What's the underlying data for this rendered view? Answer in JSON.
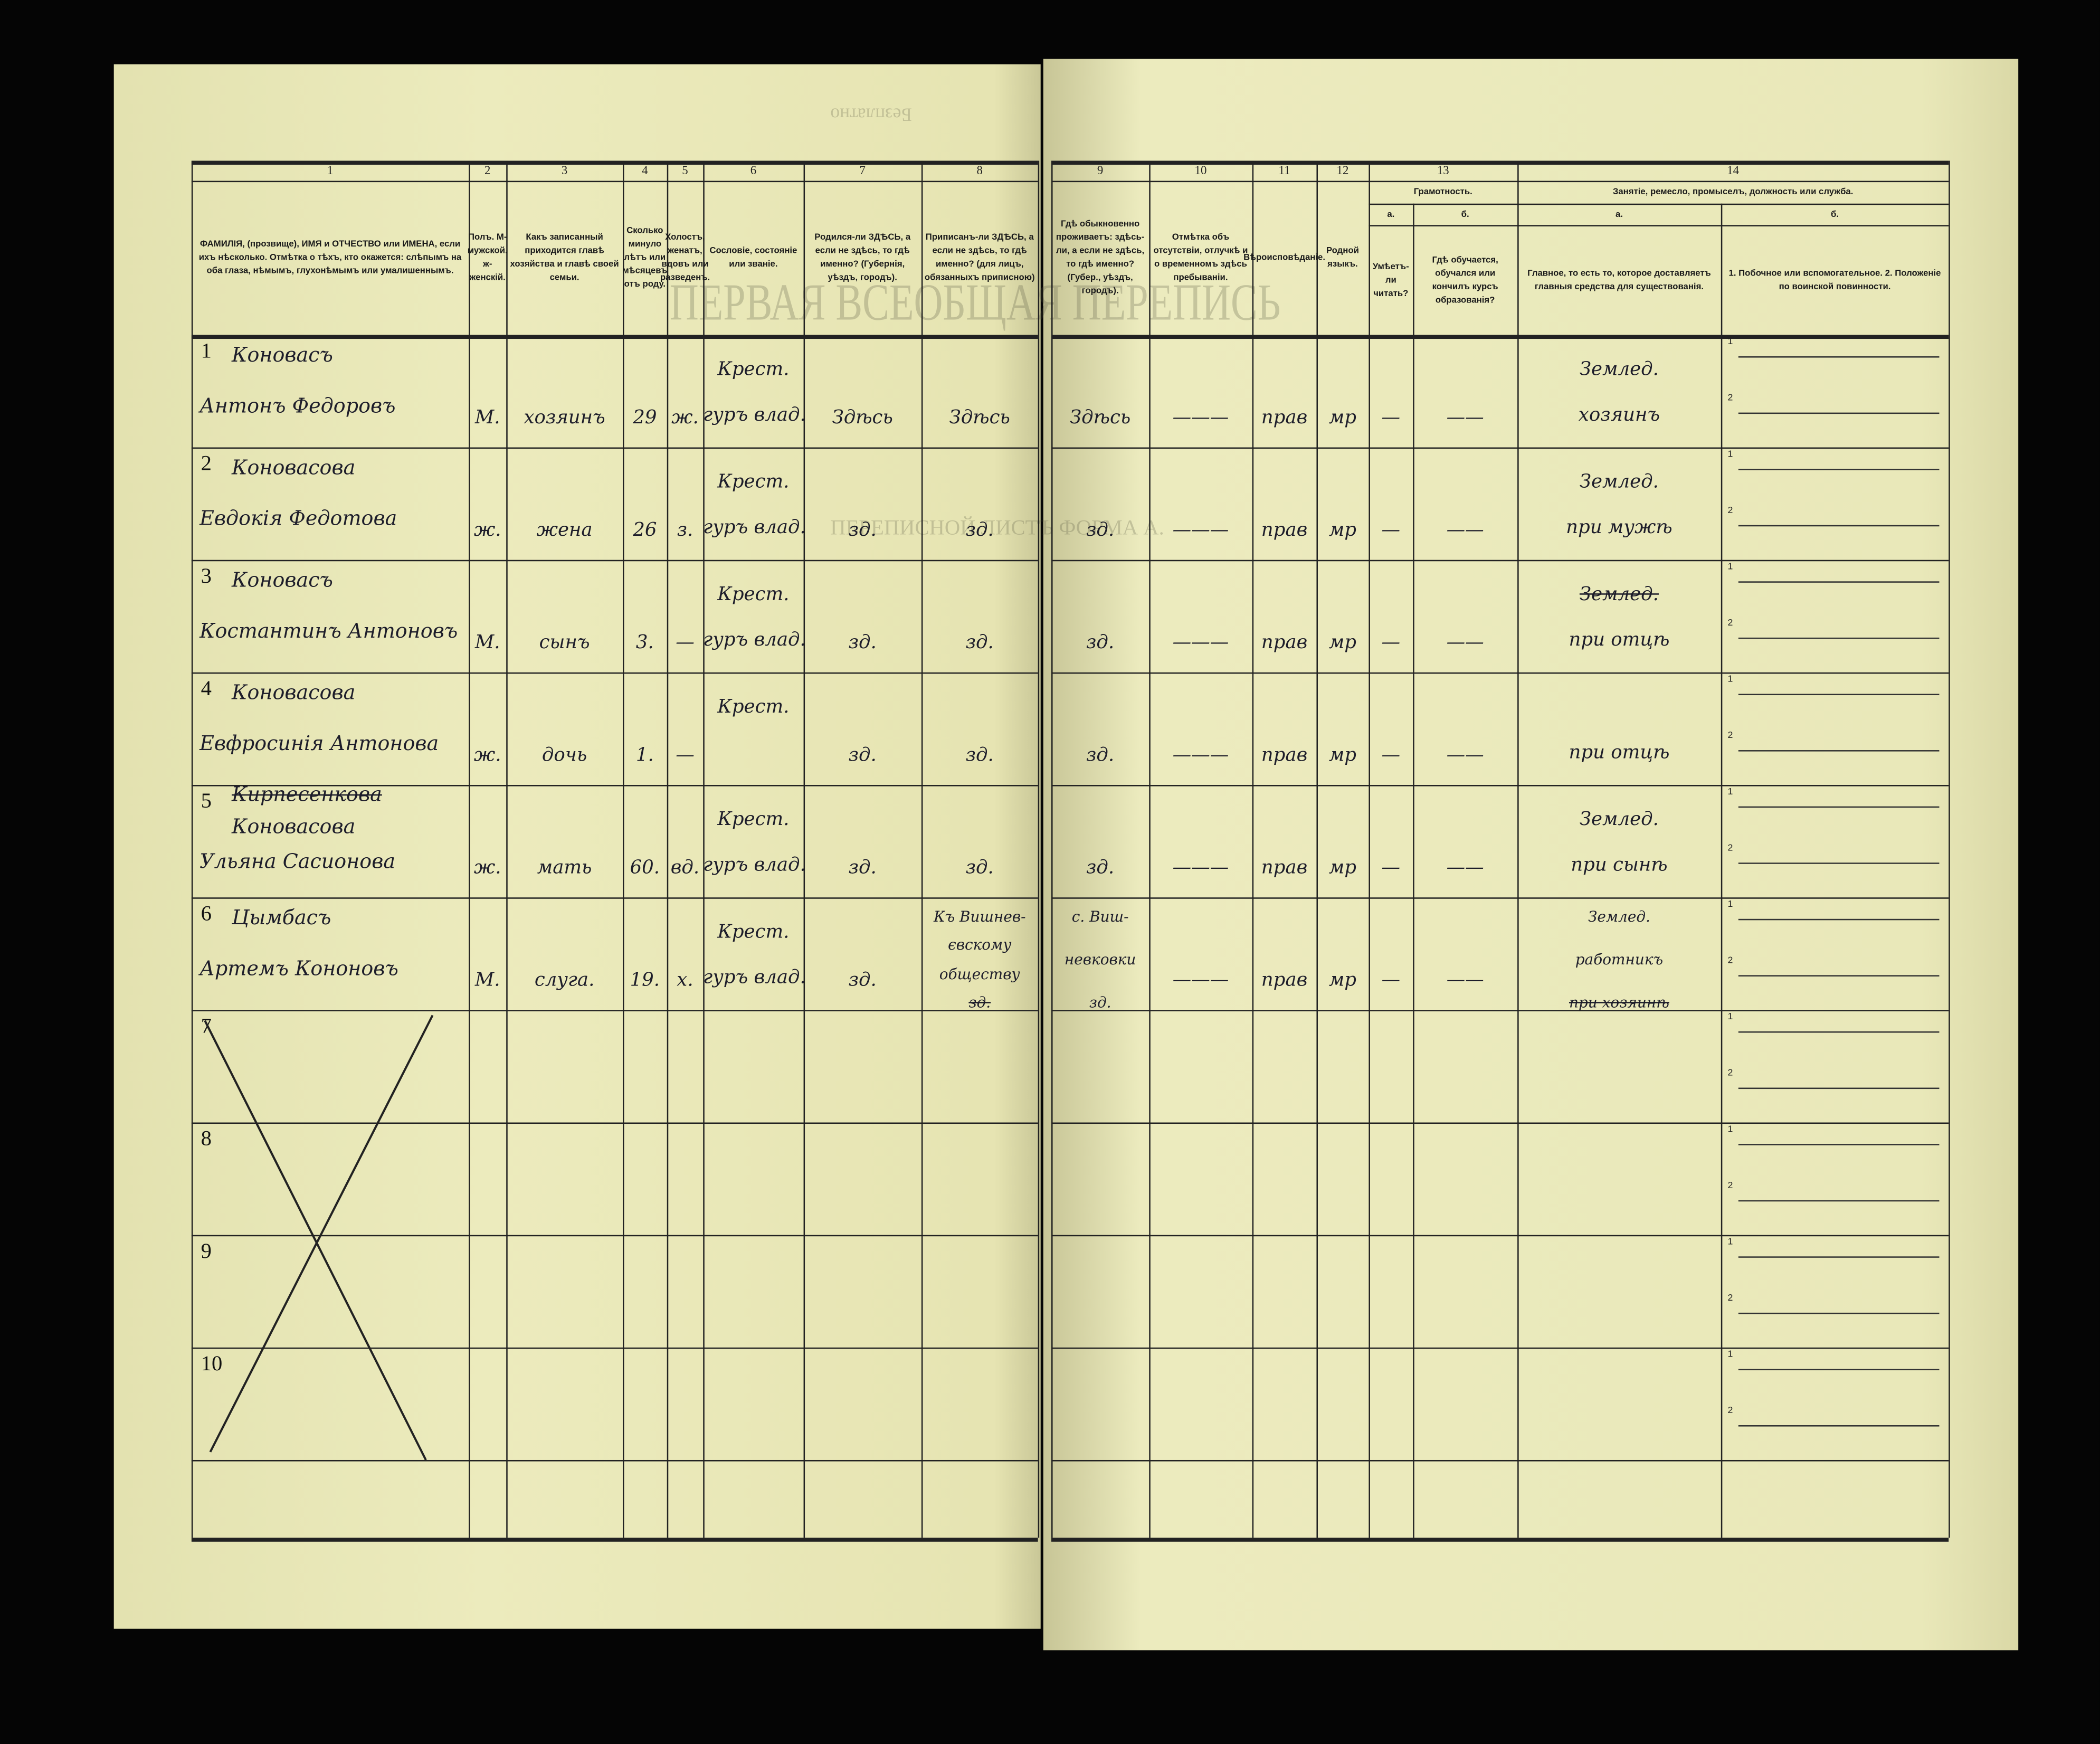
{
  "document": {
    "headers_left": [
      {
        "key": "name",
        "num": "1",
        "text": "ФАМИЛІЯ, (прозвище), ИМЯ и ОТЧЕСТВО или ИМЕНА, если ихъ нѣсколько. Отмѣтка о тѣхъ, кто окажется: слѣпымъ на оба глаза, нѣмымъ, глухонѣмымъ или умалишеннымъ."
      },
      {
        "key": "sex",
        "num": "2",
        "text": "Полъ. М-мужской. ж-женскій."
      },
      {
        "key": "relation",
        "num": "3",
        "text": "Какъ записанный приходится главѣ хозяйства и главѣ своей семьи."
      },
      {
        "key": "age",
        "num": "4",
        "text": "Сколько минуло лѣтъ или мѣсяцевъ отъ роду."
      },
      {
        "key": "marital",
        "num": "5",
        "text": "Холостъ, женатъ, вдовъ или разведенъ."
      },
      {
        "key": "estate",
        "num": "6",
        "text": "Сословіе, состояніе или званіе."
      },
      {
        "key": "born",
        "num": "7",
        "text": "Родился-ли ЗДѢСЬ, а если не здѣсь, то гдѣ именно? (Губернія, уѣздъ, городъ)."
      },
      {
        "key": "registered",
        "num": "8",
        "text": "Приписанъ-ли ЗДѢСЬ, а если не здѣсь, то гдѣ именно? (для лицъ, обязанныхъ приписною)"
      }
    ],
    "headers_right": [
      {
        "key": "residence",
        "num": "9",
        "text": "Гдѣ обыкновенно проживаетъ: здѣсь-ли, а если не здѣсь, то гдѣ именно? (Губер., уѣздъ, городъ)."
      },
      {
        "key": "absence",
        "num": "10",
        "text": "Отмѣтка объ отсутствіи, отлучкѣ и о временномъ здѣсь пребываніи."
      },
      {
        "key": "religion",
        "num": "11",
        "text": "Вѣроисповѣданіе."
      },
      {
        "key": "language",
        "num": "12",
        "text": "Родной языкъ."
      },
      {
        "key": "lit_a",
        "num": "",
        "text": "Умѣетъ-ли читать?"
      },
      {
        "key": "lit_b",
        "num": "",
        "text": "Гдѣ обучается, обучался или кончилъ курсъ образованія?"
      },
      {
        "key": "occ_a",
        "num": "",
        "text": "Главное, то есть то, которое доставляетъ главныя средства для существованія."
      },
      {
        "key": "occ_b",
        "num": "",
        "text": "1. Побочное или вспомогательное. 2. Положеніе по воинской повинности."
      }
    ],
    "group_13": {
      "num": "13",
      "title": "Грамотность.",
      "a": "а.",
      "b": "б."
    },
    "group_14": {
      "num": "14",
      "title": "Занятіе, ремесло, промыселъ, должность или служба.",
      "a": "а.",
      "b": "б."
    },
    "occ_b_labels": [
      "1",
      "2"
    ],
    "bleed_through": {
      "top": "Безплатно",
      "form": "ПЕРВАЯ ВСЕОБЩАЯ ПЕРЕПИСЬ",
      "sheet": "ПЕРЕПИСНОЙ ЛИСТЪ ФОРМА А."
    }
  },
  "rows": [
    {
      "num": "1",
      "cells": {
        "name": [
          {
            "t": "Коновасъ"
          },
          {
            "t": "Антонъ Федоровъ"
          }
        ],
        "sex": [
          "М."
        ],
        "relation": [
          "хозяинъ"
        ],
        "age": [
          "29"
        ],
        "marital": [
          "ж."
        ],
        "estate": [
          "Крест.",
          "гуръ влад."
        ],
        "born": [
          "Здѣсь"
        ],
        "registered": [
          "Здѣсь"
        ],
        "residence": [
          "Здѣсь"
        ],
        "absence": [
          "———"
        ],
        "religion": [
          "прав"
        ],
        "language": [
          "мр"
        ],
        "lit_a": [
          "—"
        ],
        "lit_b": [
          "——"
        ],
        "occ_a": [
          {
            "t": "Землед."
          },
          {
            "t": "хозяинъ"
          }
        ]
      }
    },
    {
      "num": "2",
      "cells": {
        "name": [
          {
            "t": "Коновасова"
          },
          {
            "t": "Евдокія Федотова"
          }
        ],
        "sex": [
          "ж."
        ],
        "relation": [
          "жена"
        ],
        "age": [
          "26"
        ],
        "marital": [
          "з."
        ],
        "estate": [
          "Крест.",
          "гуръ влад."
        ],
        "born": [
          "зд."
        ],
        "registered": [
          "зд."
        ],
        "residence": [
          "зд."
        ],
        "absence": [
          "———"
        ],
        "religion": [
          "прав"
        ],
        "language": [
          "мр"
        ],
        "lit_a": [
          "—"
        ],
        "lit_b": [
          "——"
        ],
        "occ_a": [
          {
            "t": "Землед."
          },
          {
            "t": "при мужѣ"
          }
        ]
      }
    },
    {
      "num": "3",
      "cells": {
        "name": [
          {
            "t": "Коновасъ"
          },
          {
            "t": "Костантинъ Антоновъ"
          }
        ],
        "sex": [
          "М."
        ],
        "relation": [
          "сынъ"
        ],
        "age": [
          "3."
        ],
        "marital": [
          "—"
        ],
        "estate": [
          "Крест.",
          "гуръ влад."
        ],
        "born": [
          "зд."
        ],
        "registered": [
          "зд."
        ],
        "residence": [
          "зд."
        ],
        "absence": [
          "———"
        ],
        "religion": [
          "прав"
        ],
        "language": [
          "мр"
        ],
        "lit_a": [
          "—"
        ],
        "lit_b": [
          "——"
        ],
        "occ_a": [
          {
            "t": "Землед.",
            "struck": true
          },
          {
            "t": "при отцѣ"
          }
        ]
      }
    },
    {
      "num": "4",
      "cells": {
        "name": [
          {
            "t": "Коновасова"
          },
          {
            "t": "Евфросинія Антонова"
          }
        ],
        "sex": [
          "ж."
        ],
        "relation": [
          "дочь"
        ],
        "age": [
          "1."
        ],
        "marital": [
          "—"
        ],
        "estate": [
          "Крест.",
          ""
        ],
        "born": [
          "зд."
        ],
        "registered": [
          "зд."
        ],
        "residence": [
          "зд."
        ],
        "absence": [
          "———"
        ],
        "religion": [
          "прав"
        ],
        "language": [
          "мр"
        ],
        "lit_a": [
          "—"
        ],
        "lit_b": [
          "——"
        ],
        "occ_a": [
          {
            "t": ""
          },
          {
            "t": "при отцѣ"
          }
        ]
      }
    },
    {
      "num": "5",
      "cells": {
        "name": [
          {
            "t": "Кирпесенкова",
            "struck": true
          },
          {
            "t": "Коновасова"
          },
          {
            "t": "Ульяна Сасионова"
          }
        ],
        "sex": [
          "ж."
        ],
        "relation": [
          "мать"
        ],
        "age": [
          "60."
        ],
        "marital": [
          "вд."
        ],
        "estate": [
          "Крест.",
          "гуръ влад."
        ],
        "born": [
          "зд."
        ],
        "registered": [
          "зд."
        ],
        "residence": [
          "зд."
        ],
        "absence": [
          "———"
        ],
        "religion": [
          "прав"
        ],
        "language": [
          "мр"
        ],
        "lit_a": [
          "—"
        ],
        "lit_b": [
          "——"
        ],
        "occ_a": [
          {
            "t": "Землед."
          },
          {
            "t": "при сынѣ"
          }
        ]
      }
    },
    {
      "num": "6",
      "cells": {
        "name": [
          {
            "t": "Цымбасъ"
          },
          {
            "t": "Артемъ Кононовъ"
          }
        ],
        "sex": [
          "М."
        ],
        "relation": [
          "слуга."
        ],
        "age": [
          "19."
        ],
        "marital": [
          "х."
        ],
        "estate": [
          "Крест.",
          "гуръ влад."
        ],
        "born": [
          "зд."
        ],
        "registered": [
          {
            "t": "Къ Вишнев-"
          },
          {
            "t": "євскому"
          },
          {
            "t": "обществу"
          },
          {
            "t": "зд.",
            "struck": true
          }
        ],
        "residence": [
          {
            "t": "с. Виш-"
          },
          {
            "t": "невковки"
          },
          {
            "t": "зд."
          }
        ],
        "absence": [
          "———"
        ],
        "religion": [
          "прав"
        ],
        "language": [
          "мр"
        ],
        "lit_a": [
          "—"
        ],
        "lit_b": [
          "——"
        ],
        "occ_a": [
          {
            "t": "Землед."
          },
          {
            "t": "работникъ"
          },
          {
            "t": "при хозяинѣ",
            "struck": true
          }
        ]
      }
    },
    {
      "num": "7",
      "crossed": true,
      "cells": {}
    },
    {
      "num": "8",
      "crossed": true,
      "cells": {}
    },
    {
      "num": "9",
      "crossed": true,
      "cells": {}
    },
    {
      "num": "10",
      "crossed": true,
      "cells": {}
    }
  ]
}
